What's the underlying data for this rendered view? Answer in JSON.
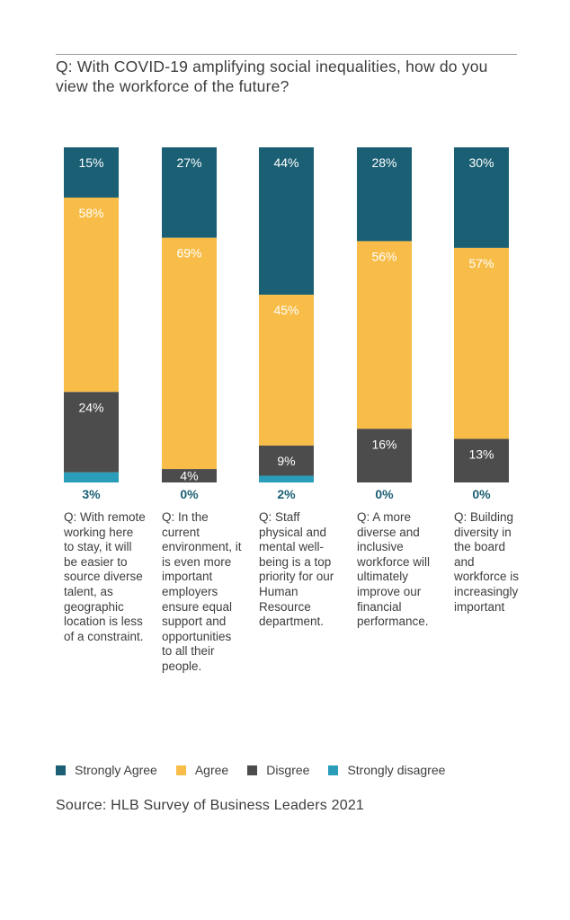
{
  "title": "Q: With COVID-19 amplifying social inequalities, how do you view the workforce of the future?",
  "source": "Source: HLB Survey of Business Leaders 2021",
  "colors": {
    "strongly_agree": "#1b5f74",
    "agree": "#f8bd49",
    "disagree": "#4c4c4c",
    "strongly_disagree": "#2a9dbb",
    "bottom_label": "#1b5f74"
  },
  "legend": [
    {
      "label": "Strongly Agree",
      "color": "#1b5f74"
    },
    {
      "label": "Agree",
      "color": "#f8bd49"
    },
    {
      "label": "Disgree",
      "color": "#4c4c4c"
    },
    {
      "label": "Strongly disagree",
      "color": "#2a9dbb"
    }
  ],
  "chart_data": {
    "type": "bar",
    "stacked": true,
    "categories": [
      "Q: With remote working here to stay, it will be easier to source diverse talent, as geographic location is less of a constraint.",
      "Q: In the current environment, it is even more important employers ensure equal support and opportunities to all their people.",
      "Q: Staff physical and mental well-being is a top priority for our Human Resource department.",
      "Q: A more diverse and inclusive workforce will ultimately improve our financial performance.",
      "Q: Building diversity in the board and workforce is increasingly important"
    ],
    "series": [
      {
        "name": "Strongly Agree",
        "values": [
          15,
          27,
          44,
          28,
          30
        ],
        "labels": [
          "15%",
          "27%",
          "44%",
          "28%",
          "30%"
        ]
      },
      {
        "name": "Agree",
        "values": [
          58,
          69,
          45,
          56,
          57
        ],
        "labels": [
          "58%",
          "69%",
          "45%",
          "56%",
          "57%"
        ]
      },
      {
        "name": "Disgree",
        "values": [
          24,
          4,
          9,
          16,
          13
        ],
        "labels": [
          "24%",
          "4%",
          "9%",
          "16%",
          "13%"
        ]
      },
      {
        "name": "Strongly disagree",
        "values": [
          3,
          0,
          2,
          0,
          0
        ],
        "labels": [
          "3%",
          "0%",
          "2%",
          "0%",
          "0%"
        ]
      }
    ],
    "ylim": [
      0,
      100
    ]
  }
}
